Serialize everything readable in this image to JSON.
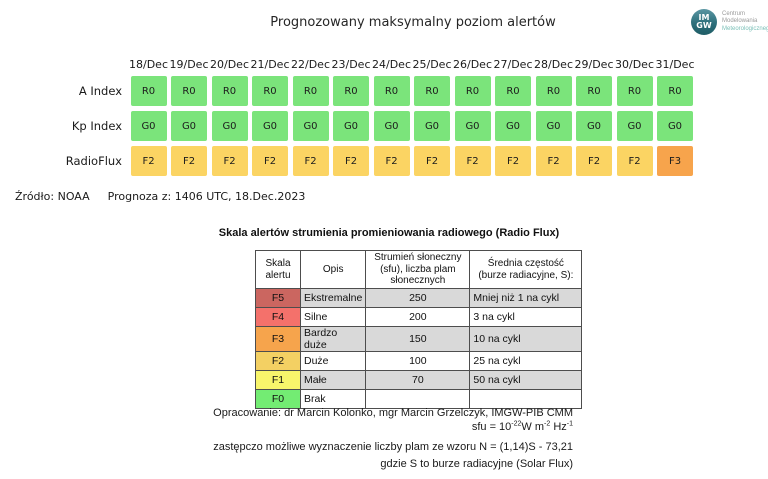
{
  "colors": {
    "green": "#7be47b",
    "yellow": "#fbd463",
    "orange": "#f7a44c",
    "row_alt": "#d9d9d9",
    "row_plain": "#ffffff"
  },
  "logo": {
    "abbr_top": "IM",
    "abbr_bottom": "GW",
    "line1": "Centrum",
    "line2": "Modelowania",
    "line3": "Meteorologicznego"
  },
  "texts": {
    "title": "Prognozowany maksymalny poziom alertów",
    "source": "Źródło: NOAA",
    "issued": "Prognoza z: 1406 UTC, 18.Dec.2023",
    "scale_title": "Skala alertów strumienia promieniowania radiowego (Radio Flux)",
    "credit": "Opracowanie: dr Marcin Kolonko, mgr Marcin Grzelczyk, IMGW-PIB CMM",
    "sfu": {
      "b1": "sfu = 10",
      "s1": "-22",
      "b2": "W m",
      "s2": "-2",
      "b3": " Hz",
      "s3": "-1"
    },
    "formula": "zastępczo możliwe wyznaczenie liczby plam ze wzoru N = (1,14)S - 73,21",
    "formula_note": "gdzie S to burze radiacyjne (Solar Flux)"
  },
  "chart_data": [
    {
      "id": "forecast",
      "type": "table",
      "title": "Prognozowany maksymalny poziom alertów",
      "columns": [
        "18/Dec",
        "19/Dec",
        "20/Dec",
        "21/Dec",
        "22/Dec",
        "23/Dec",
        "24/Dec",
        "25/Dec",
        "26/Dec",
        "27/Dec",
        "28/Dec",
        "29/Dec",
        "30/Dec",
        "31/Dec"
      ],
      "rows": [
        {
          "name": "A Index",
          "values": [
            "R0",
            "R0",
            "R0",
            "R0",
            "R0",
            "R0",
            "R0",
            "R0",
            "R0",
            "R0",
            "R0",
            "R0",
            "R0",
            "R0"
          ],
          "levels": [
            "green",
            "green",
            "green",
            "green",
            "green",
            "green",
            "green",
            "green",
            "green",
            "green",
            "green",
            "green",
            "green",
            "green"
          ]
        },
        {
          "name": "Kp Index",
          "values": [
            "G0",
            "G0",
            "G0",
            "G0",
            "G0",
            "G0",
            "G0",
            "G0",
            "G0",
            "G0",
            "G0",
            "G0",
            "G0",
            "G0"
          ],
          "levels": [
            "green",
            "green",
            "green",
            "green",
            "green",
            "green",
            "green",
            "green",
            "green",
            "green",
            "green",
            "green",
            "green",
            "green"
          ]
        },
        {
          "name": "RadioFlux",
          "values": [
            "F2",
            "F2",
            "F2",
            "F2",
            "F2",
            "F2",
            "F2",
            "F2",
            "F2",
            "F2",
            "F2",
            "F2",
            "F2",
            "F3"
          ],
          "levels": [
            "yellow",
            "yellow",
            "yellow",
            "yellow",
            "yellow",
            "yellow",
            "yellow",
            "yellow",
            "yellow",
            "yellow",
            "yellow",
            "yellow",
            "yellow",
            "orange"
          ]
        }
      ]
    },
    {
      "id": "radio_flux_scale",
      "type": "table",
      "title": "Skala alertów strumienia promieniowania radiowego (Radio Flux)",
      "columns": [
        "Skala alertu",
        "Opis",
        "Strumień słoneczny (sfu), liczba plam słonecznych",
        "Średnia częstość (burze radiacyjne, S):"
      ],
      "rows": [
        {
          "level": "F5",
          "level_color": "#cb6660",
          "opis": "Ekstremalne",
          "strumien": "250",
          "czestosc": "Mniej niż 1 na cykl"
        },
        {
          "level": "F4",
          "level_color": "#f4716b",
          "opis": "Silne",
          "strumien": "200",
          "czestosc": "3 na cykl"
        },
        {
          "level": "F3",
          "level_color": "#f6a44c",
          "opis": "Bardzo duże",
          "strumien": "150",
          "czestosc": "10 na cykl"
        },
        {
          "level": "F2",
          "level_color": "#f3d063",
          "opis": "Duże",
          "strumien": "100",
          "czestosc": "25 na cykl"
        },
        {
          "level": "F1",
          "level_color": "#f8f56b",
          "opis": "Małe",
          "strumien": "70",
          "czestosc": "50 na cykl"
        },
        {
          "level": "F0",
          "level_color": "#73ec73",
          "opis": "Brak",
          "strumien": "",
          "czestosc": ""
        }
      ]
    }
  ]
}
